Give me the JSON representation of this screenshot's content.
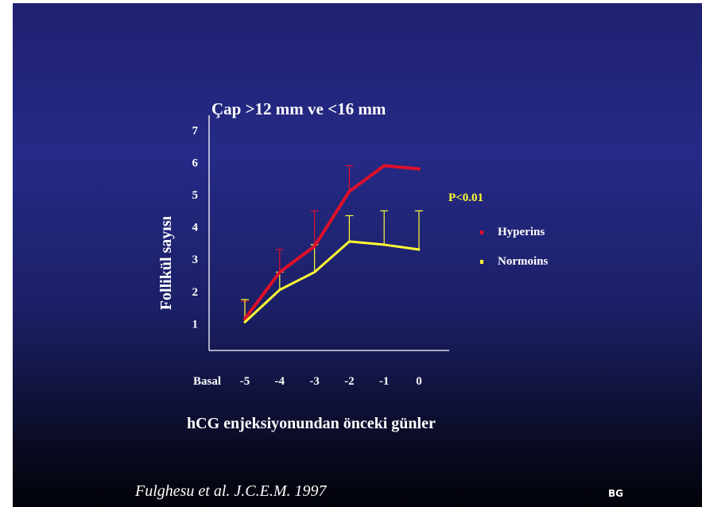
{
  "citation": "Fulghesu et al. J.C.E.M. 1997",
  "badge": "BG",
  "colors": {
    "background": "#23277e",
    "hyperins": "#e0102a",
    "normoins": "#ffff33",
    "text": "#ffffff"
  },
  "chart_data": {
    "type": "line",
    "title": "Çap >12 mm ve <16 mm",
    "xlabel": "hCG enjeksiyonundan önceki günler",
    "ylabel": "Follikül sayısı",
    "categories": [
      "-5",
      "-4",
      "-3",
      "-2",
      "-1",
      "0"
    ],
    "x_axis_prefix_label": "Basal",
    "ylim": [
      0,
      7
    ],
    "yticks": [
      1,
      2,
      3,
      4,
      5,
      6,
      7
    ],
    "grid": false,
    "legend_position": "right",
    "annotation": "P<0.01",
    "series": [
      {
        "name": "Hyperins",
        "color": "#e0102a",
        "values": [
          1.15,
          2.6,
          3.4,
          5.1,
          5.9,
          5.8
        ],
        "error_upper": [
          1.7,
          3.3,
          4.5,
          5.9,
          5.9,
          5.8
        ]
      },
      {
        "name": "Normoins",
        "color": "#ffff33",
        "values": [
          1.05,
          2.05,
          2.6,
          3.55,
          3.45,
          3.3
        ],
        "error_upper": [
          1.75,
          2.6,
          3.45,
          4.35,
          4.5,
          4.5
        ]
      }
    ]
  }
}
